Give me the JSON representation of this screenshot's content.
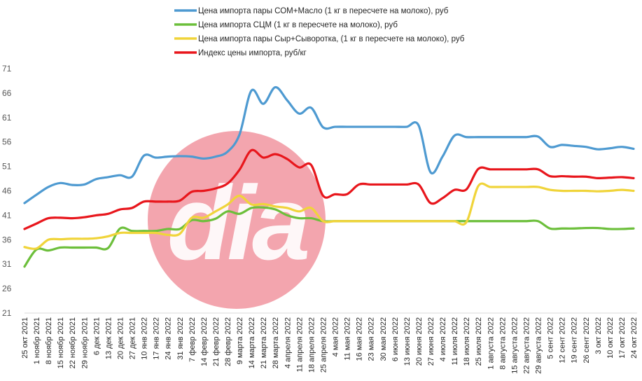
{
  "chart_data": {
    "type": "line",
    "title": "",
    "xlabel": "",
    "ylabel": "",
    "ylim": [
      21,
      71
    ],
    "yticks": [
      21,
      26,
      31,
      36,
      41,
      46,
      51,
      56,
      61,
      66,
      71
    ],
    "grid": false,
    "legend_position": "top",
    "x": [
      "25 окт 2021",
      "1 ноябр 2021",
      "8 ноябр 2021",
      "15 ноябр 2021",
      "22 ноябр 2021",
      "29 ноябр 2021",
      "6 дек 2021",
      "13 дек 2021",
      "20 дек 2021",
      "27 дек 2021",
      "10 янв 2022",
      "17 янв 2022",
      "24 янв 2022",
      "31 янв 2022",
      "7 февр 2022",
      "14 февр 2022",
      "21 февр 2022",
      "28 февр 2022",
      "9 марта 2022",
      "14 марта 2022",
      "21 марта 2022",
      "28 марта 2022",
      "4 апреля 2022",
      "11 апреля 2022",
      "18 апреля 2022",
      "25 апреля 2022",
      "4 мая 2022",
      "11 мая 2022",
      "16 мая 2022",
      "23 мая 2022",
      "30 мая 2022",
      "6 июня 2022",
      "13 июня 2022",
      "20 июня 2022",
      "27 июня 2022",
      "4 июля 2022",
      "11 июля 2022",
      "18 июля 2022",
      "25 июля 2022",
      "1 августа 2022",
      "8 августа 2022",
      "15 августа 2022",
      "22 августа 2022",
      "29 августа 2022",
      "5 сент 2022",
      "12 сент 2022",
      "19 сент 2022",
      "26 сент 2022",
      "3 окт 2022",
      "10 окт 2022",
      "17 окт 2022",
      "24 окт 2022"
    ],
    "series": [
      {
        "name": "Цена импорта пары СОМ+Масло (1 кг в пересчете на молоко), руб",
        "color": "#4e9ad1",
        "values": [
          43.5,
          45.2,
          46.8,
          47.6,
          47.2,
          47.3,
          48.4,
          48.8,
          49.2,
          48.9,
          53.2,
          52.8,
          53.0,
          53.1,
          53.0,
          52.6,
          53.0,
          54.0,
          57.5,
          66.5,
          63.8,
          67.2,
          64.5,
          61.8,
          63.0,
          59.0,
          59.1,
          59.1,
          59.1,
          59.1,
          59.1,
          59.1,
          59.1,
          59.4,
          49.8,
          53.0,
          57.3,
          57.0,
          57.0,
          57.0,
          57.0,
          57.0,
          57.0,
          57.1,
          55.0,
          55.4,
          55.2,
          55.0,
          54.5,
          54.7,
          55.0,
          54.6
        ]
      },
      {
        "name": "Цена импорта СЦМ (1 кг в пересчете на молоко), руб",
        "color": "#6cbf3b",
        "values": [
          30.5,
          34.0,
          33.8,
          34.4,
          34.4,
          34.4,
          34.4,
          34.3,
          38.3,
          37.8,
          37.8,
          37.8,
          38.2,
          38.2,
          40.0,
          39.8,
          40.3,
          41.8,
          41.3,
          42.5,
          42.6,
          42.2,
          41.0,
          40.4,
          40.4,
          39.8,
          39.8,
          39.8,
          39.8,
          39.8,
          39.8,
          39.8,
          39.8,
          39.8,
          39.8,
          39.8,
          39.8,
          39.8,
          39.8,
          39.8,
          39.8,
          39.8,
          39.8,
          39.8,
          38.3,
          38.3,
          38.3,
          38.4,
          38.4,
          38.2,
          38.2,
          38.3
        ]
      },
      {
        "name": "Цена импорта пары Сыр+Сыворотка, (1 кг в пересчете на молоко), руб",
        "color": "#f0d43a",
        "values": [
          34.5,
          34.2,
          36.0,
          36.1,
          36.2,
          36.2,
          36.3,
          36.7,
          37.4,
          37.4,
          37.4,
          37.4,
          37.0,
          37.2,
          40.5,
          40.5,
          41.8,
          43.2,
          45.0,
          43.2,
          43.3,
          42.8,
          42.5,
          41.8,
          42.5,
          39.8,
          39.8,
          39.8,
          39.8,
          39.8,
          39.8,
          39.8,
          39.8,
          39.8,
          39.8,
          39.8,
          39.8,
          39.6,
          47.0,
          46.8,
          46.8,
          46.8,
          46.8,
          46.8,
          46.2,
          46.0,
          46.0,
          46.0,
          45.9,
          46.0,
          46.2,
          46.0
        ]
      },
      {
        "name": "Индекс цены импорта, руб/кг",
        "color": "#e8161c",
        "values": [
          38.2,
          39.3,
          40.4,
          40.5,
          40.4,
          40.6,
          41.0,
          41.3,
          42.2,
          42.5,
          43.8,
          43.8,
          43.8,
          44.0,
          45.8,
          46.0,
          46.5,
          47.5,
          50.3,
          54.3,
          52.8,
          53.5,
          52.5,
          50.8,
          51.3,
          45.0,
          45.3,
          45.3,
          47.3,
          47.3,
          47.3,
          47.3,
          47.3,
          47.3,
          43.5,
          44.5,
          46.2,
          46.3,
          50.5,
          50.4,
          50.4,
          50.4,
          50.4,
          50.4,
          49.0,
          49.0,
          48.9,
          48.9,
          48.6,
          48.7,
          48.8,
          48.6
        ]
      }
    ]
  },
  "watermark_text": "dia"
}
